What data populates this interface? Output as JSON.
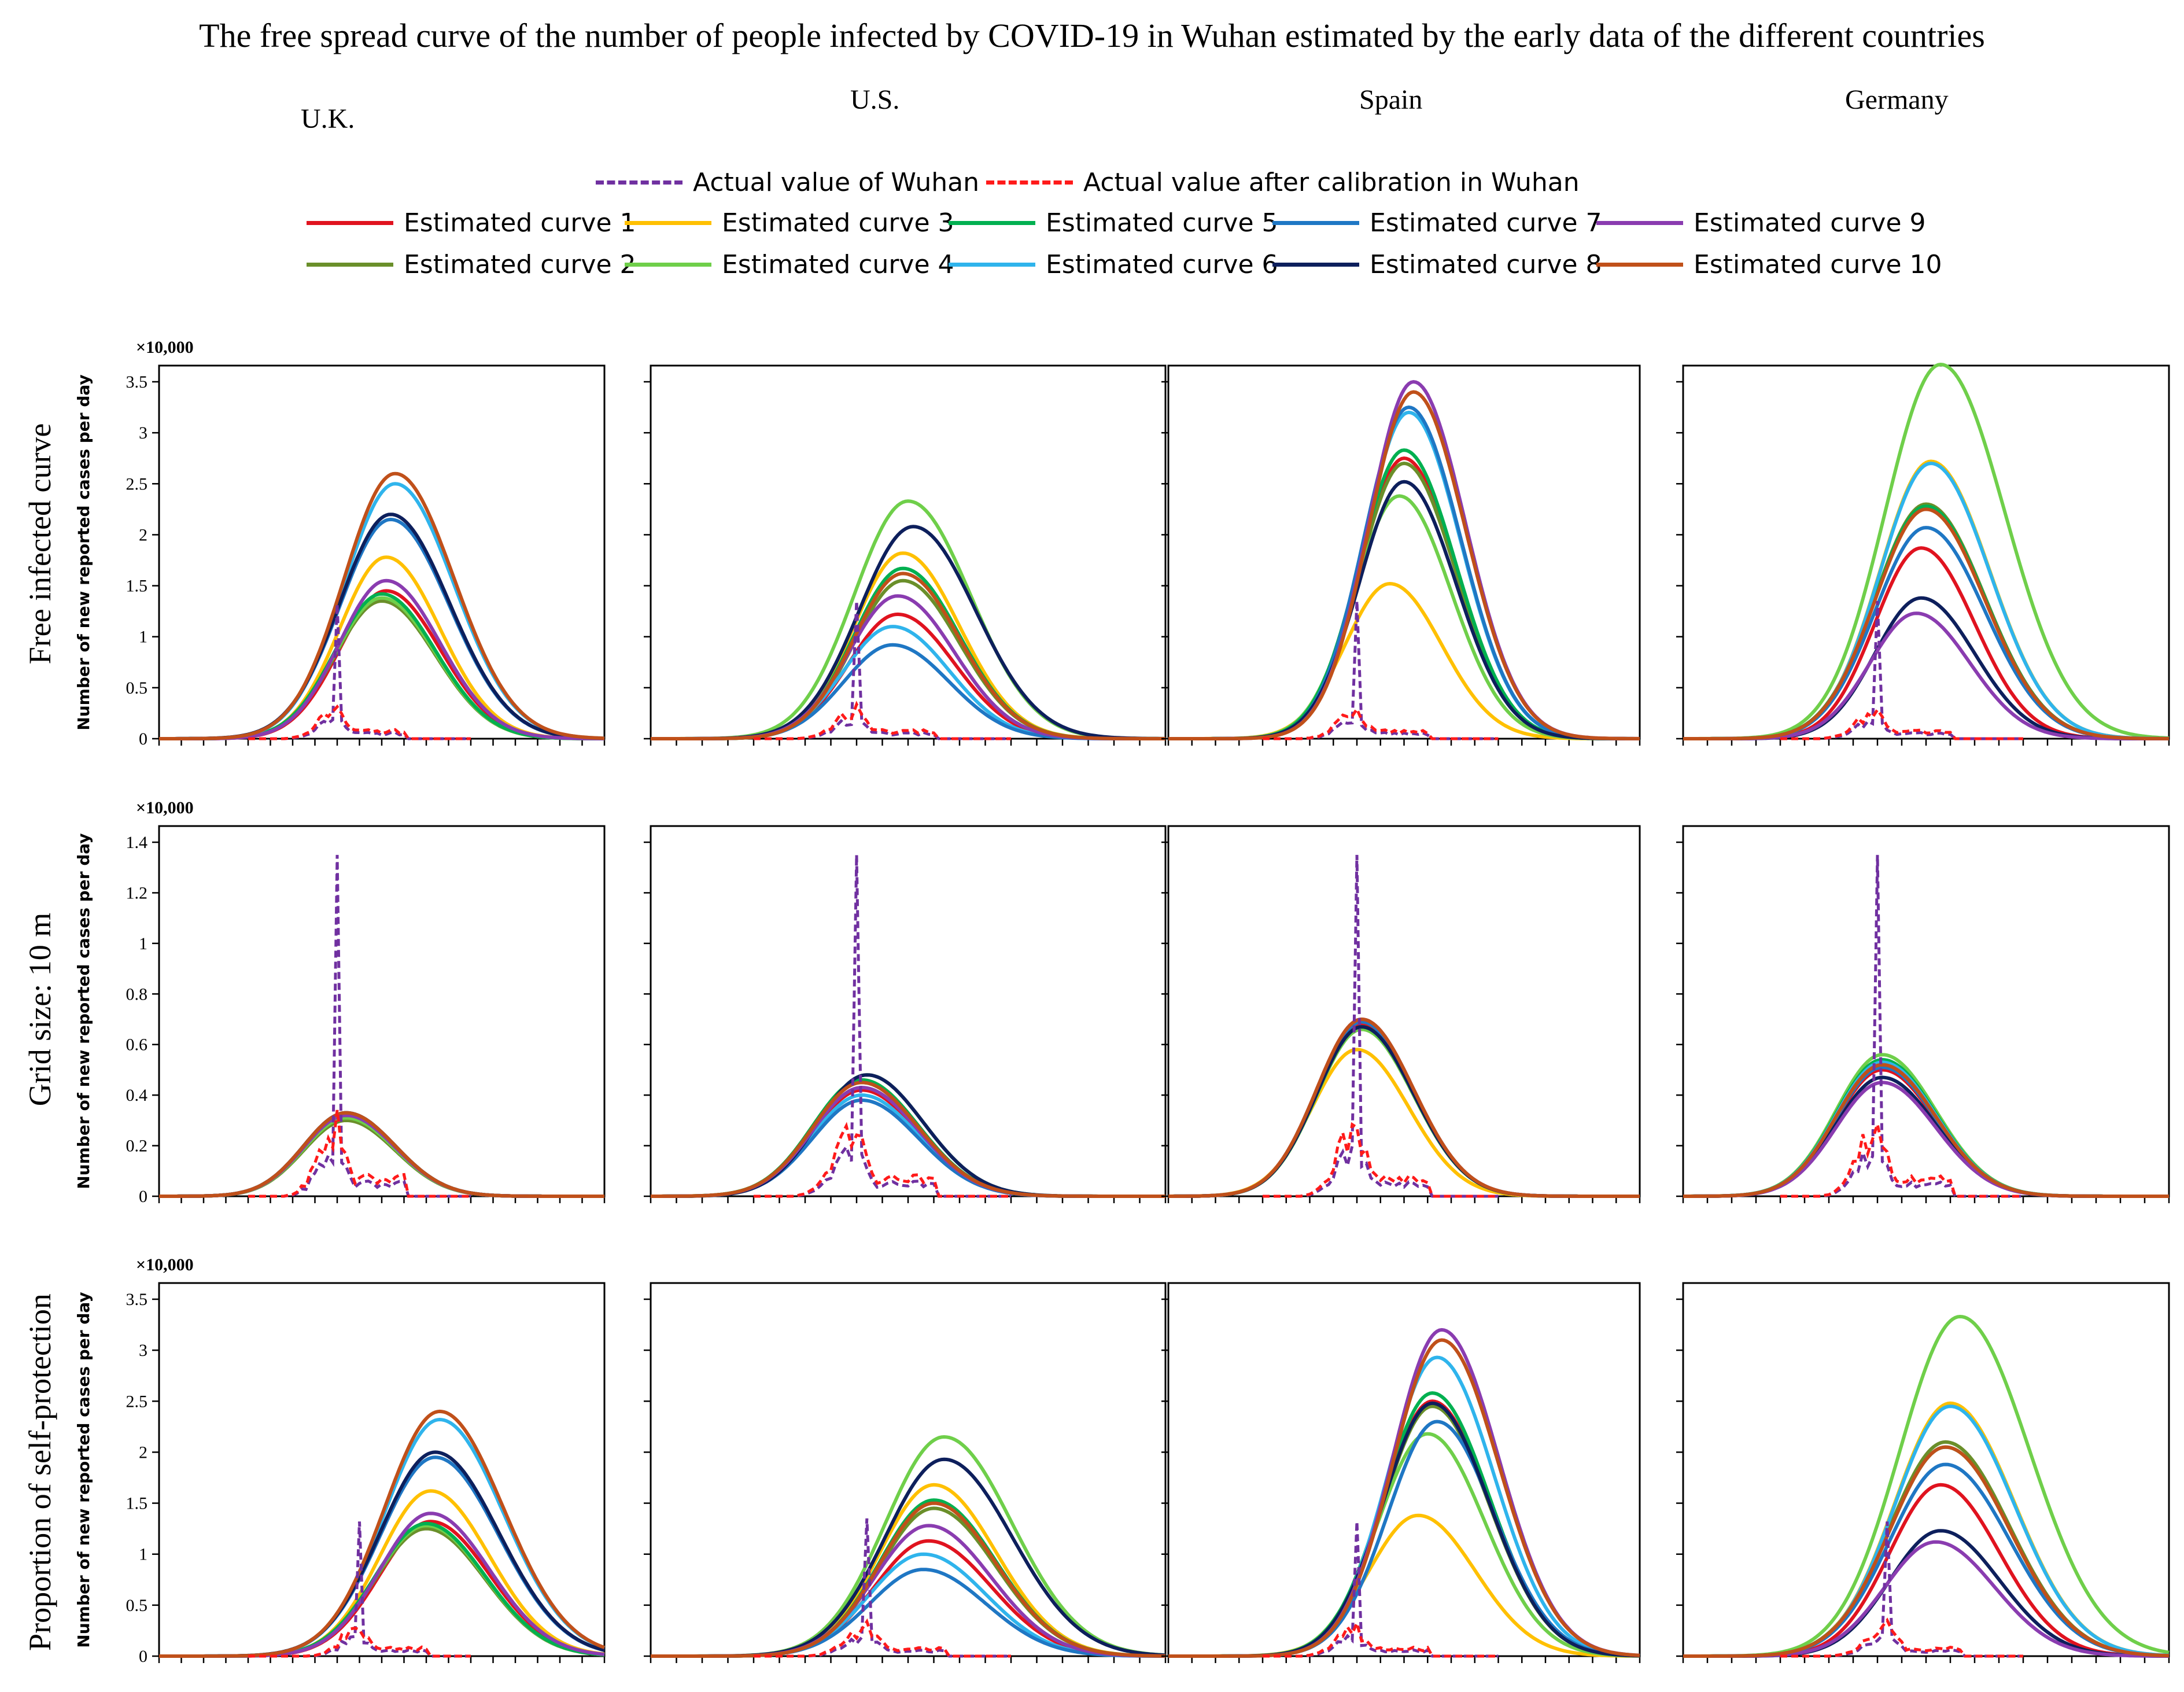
{
  "title": "The free spread curve of the number of people infected by COVID-19 in Wuhan estimated by the early data of the different countries",
  "countries": [
    "U.K.",
    "U.S.",
    "Spain",
    "Germany"
  ],
  "row_labels": [
    "Free infected curve",
    "Grid size: 10 m",
    "Proportion of self-protection"
  ],
  "y_axis_title": "Number of new reported cases per day",
  "scale_label": "×10,000",
  "legend": {
    "top_row": [
      {
        "name": "Actual value of Wuhan",
        "color": "#7030a0",
        "dashed": true
      },
      {
        "name": "Actual value after calibration in Wuhan",
        "color": "#ff1a1a",
        "dashed": true
      }
    ],
    "curves": [
      {
        "name": "Estimated curve 1",
        "color": "#e0131f"
      },
      {
        "name": "Estimated curve 2",
        "color": "#6a8f2a"
      },
      {
        "name": "Estimated curve 3",
        "color": "#ffc000"
      },
      {
        "name": "Estimated curve 4",
        "color": "#6fcf4a"
      },
      {
        "name": "Estimated curve 5",
        "color": "#00b050"
      },
      {
        "name": "Estimated curve 6",
        "color": "#2fb4ec"
      },
      {
        "name": "Estimated curve 7",
        "color": "#1f77c4"
      },
      {
        "name": "Estimated curve 8",
        "color": "#0d1f5c"
      },
      {
        "name": "Estimated curve 9",
        "color": "#8a3cb0"
      },
      {
        "name": "Estimated curve 10",
        "color": "#c0501a"
      }
    ]
  },
  "chart_data": [
    {
      "type": "line",
      "row": "Free infected curve",
      "country": "U.K.",
      "ylim": [
        0,
        3.5
      ],
      "yticks": [
        0,
        0.5,
        1,
        1.5,
        2,
        2.5,
        3,
        3.5
      ],
      "tick_labels_shown": true,
      "xlim": [
        0,
        100
      ],
      "actual_peak": 1.32,
      "actual_peak_day": 40,
      "series": [
        {
          "peak_day": 51,
          "peak": 1.45,
          "width": 11
        },
        {
          "peak_day": 50,
          "peak": 1.35,
          "width": 11
        },
        {
          "peak_day": 51,
          "peak": 1.78,
          "width": 11
        },
        {
          "peak_day": 50,
          "peak": 1.38,
          "width": 11
        },
        {
          "peak_day": 50,
          "peak": 1.42,
          "width": 11
        },
        {
          "peak_day": 53,
          "peak": 2.5,
          "width": 12
        },
        {
          "peak_day": 52,
          "peak": 2.15,
          "width": 12
        },
        {
          "peak_day": 52,
          "peak": 2.2,
          "width": 12
        },
        {
          "peak_day": 51,
          "peak": 1.55,
          "width": 11
        },
        {
          "peak_day": 53,
          "peak": 2.6,
          "width": 12
        }
      ]
    },
    {
      "type": "line",
      "row": "Free infected curve",
      "country": "U.S.",
      "ylim": [
        0,
        3.5
      ],
      "yticks": [
        0,
        0.5,
        1,
        1.5,
        2,
        2.5,
        3,
        3.5
      ],
      "tick_labels_shown": false,
      "xlim": [
        0,
        100
      ],
      "actual_peak": 1.35,
      "actual_peak_day": 40,
      "series": [
        {
          "peak_day": 48,
          "peak": 1.22,
          "width": 10
        },
        {
          "peak_day": 49,
          "peak": 1.55,
          "width": 10
        },
        {
          "peak_day": 49,
          "peak": 1.82,
          "width": 10
        },
        {
          "peak_day": 50,
          "peak": 2.33,
          "width": 11
        },
        {
          "peak_day": 49,
          "peak": 1.67,
          "width": 10
        },
        {
          "peak_day": 47,
          "peak": 1.1,
          "width": 10
        },
        {
          "peak_day": 47,
          "peak": 0.92,
          "width": 10
        },
        {
          "peak_day": 51,
          "peak": 2.08,
          "width": 11
        },
        {
          "peak_day": 48,
          "peak": 1.4,
          "width": 10
        },
        {
          "peak_day": 49,
          "peak": 1.62,
          "width": 10
        }
      ]
    },
    {
      "type": "line",
      "row": "Free infected curve",
      "country": "Spain",
      "ylim": [
        0,
        3.5
      ],
      "yticks": [
        0,
        0.5,
        1,
        1.5,
        2,
        2.5,
        3,
        3.5
      ],
      "tick_labels_shown": false,
      "xlim": [
        0,
        100
      ],
      "actual_peak": 1.35,
      "actual_peak_day": 40,
      "series": [
        {
          "peak_day": 50,
          "peak": 2.75,
          "width": 10
        },
        {
          "peak_day": 50,
          "peak": 2.7,
          "width": 10
        },
        {
          "peak_day": 47,
          "peak": 1.52,
          "width": 10
        },
        {
          "peak_day": 49,
          "peak": 2.38,
          "width": 10
        },
        {
          "peak_day": 50,
          "peak": 2.83,
          "width": 10
        },
        {
          "peak_day": 51,
          "peak": 3.2,
          "width": 10
        },
        {
          "peak_day": 51,
          "peak": 3.25,
          "width": 10
        },
        {
          "peak_day": 50,
          "peak": 2.52,
          "width": 10
        },
        {
          "peak_day": 52,
          "peak": 3.5,
          "width": 10
        },
        {
          "peak_day": 52,
          "peak": 3.4,
          "width": 10
        }
      ]
    },
    {
      "type": "line",
      "row": "Free infected curve",
      "country": "Germany",
      "ylim": [
        0,
        3.5
      ],
      "yticks": [
        0,
        0.5,
        1,
        1.5,
        2,
        2.5,
        3,
        3.5
      ],
      "tick_labels_shown": false,
      "xlim": [
        0,
        100
      ],
      "actual_peak": 1.35,
      "actual_peak_day": 40,
      "series": [
        {
          "peak_day": 49,
          "peak": 1.87,
          "width": 10
        },
        {
          "peak_day": 50,
          "peak": 2.3,
          "width": 11
        },
        {
          "peak_day": 51,
          "peak": 2.72,
          "width": 11
        },
        {
          "peak_day": 53,
          "peak": 3.67,
          "width": 12
        },
        {
          "peak_day": 50,
          "peak": 2.28,
          "width": 11
        },
        {
          "peak_day": 51,
          "peak": 2.7,
          "width": 11
        },
        {
          "peak_day": 50,
          "peak": 2.07,
          "width": 11
        },
        {
          "peak_day": 49,
          "peak": 1.38,
          "width": 10
        },
        {
          "peak_day": 48,
          "peak": 1.23,
          "width": 10
        },
        {
          "peak_day": 50,
          "peak": 2.25,
          "width": 11
        }
      ]
    },
    {
      "type": "line",
      "row": "Grid size: 10 m",
      "country": "U.K.",
      "ylim": [
        0,
        1.4
      ],
      "yticks": [
        0,
        0.2,
        0.4,
        0.6,
        0.8,
        1,
        1.2,
        1.4
      ],
      "tick_labels_shown": true,
      "xlim": [
        0,
        100
      ],
      "actual_peak": 1.35,
      "actual_peak_day": 40,
      "series": [
        {
          "peak_day": 42,
          "peak": 0.32,
          "width": 10
        },
        {
          "peak_day": 42,
          "peak": 0.3,
          "width": 10
        },
        {
          "peak_day": 42,
          "peak": 0.32,
          "width": 10
        },
        {
          "peak_day": 42,
          "peak": 0.31,
          "width": 10
        },
        {
          "peak_day": 42,
          "peak": 0.32,
          "width": 10
        },
        {
          "peak_day": 42,
          "peak": 0.33,
          "width": 10
        },
        {
          "peak_day": 42,
          "peak": 0.33,
          "width": 10
        },
        {
          "peak_day": 42,
          "peak": 0.33,
          "width": 10
        },
        {
          "peak_day": 42,
          "peak": 0.32,
          "width": 10
        },
        {
          "peak_day": 42,
          "peak": 0.33,
          "width": 10
        }
      ]
    },
    {
      "type": "line",
      "row": "Grid size: 10 m",
      "country": "U.S.",
      "ylim": [
        0,
        1.4
      ],
      "yticks": [
        0,
        0.2,
        0.4,
        0.6,
        0.8,
        1,
        1.2,
        1.4
      ],
      "tick_labels_shown": false,
      "xlim": [
        0,
        100
      ],
      "actual_peak": 1.35,
      "actual_peak_day": 40,
      "series": [
        {
          "peak_day": 41,
          "peak": 0.42,
          "width": 10
        },
        {
          "peak_day": 41,
          "peak": 0.45,
          "width": 10
        },
        {
          "peak_day": 41,
          "peak": 0.46,
          "width": 10
        },
        {
          "peak_day": 42,
          "peak": 0.48,
          "width": 10
        },
        {
          "peak_day": 41,
          "peak": 0.46,
          "width": 10
        },
        {
          "peak_day": 41,
          "peak": 0.4,
          "width": 10
        },
        {
          "peak_day": 41,
          "peak": 0.38,
          "width": 10
        },
        {
          "peak_day": 42,
          "peak": 0.48,
          "width": 10
        },
        {
          "peak_day": 41,
          "peak": 0.43,
          "width": 10
        },
        {
          "peak_day": 41,
          "peak": 0.45,
          "width": 10
        }
      ]
    },
    {
      "type": "line",
      "row": "Grid size: 10 m",
      "country": "Spain",
      "ylim": [
        0,
        1.4
      ],
      "yticks": [
        0,
        0.2,
        0.4,
        0.6,
        0.8,
        1,
        1.2,
        1.4
      ],
      "tick_labels_shown": false,
      "xlim": [
        0,
        100
      ],
      "actual_peak": 1.35,
      "actual_peak_day": 40,
      "series": [
        {
          "peak_day": 41,
          "peak": 0.68,
          "width": 10
        },
        {
          "peak_day": 41,
          "peak": 0.67,
          "width": 10
        },
        {
          "peak_day": 40,
          "peak": 0.58,
          "width": 10
        },
        {
          "peak_day": 41,
          "peak": 0.66,
          "width": 10
        },
        {
          "peak_day": 41,
          "peak": 0.67,
          "width": 10
        },
        {
          "peak_day": 41,
          "peak": 0.69,
          "width": 10
        },
        {
          "peak_day": 41,
          "peak": 0.69,
          "width": 10
        },
        {
          "peak_day": 41,
          "peak": 0.67,
          "width": 10
        },
        {
          "peak_day": 41,
          "peak": 0.7,
          "width": 10
        },
        {
          "peak_day": 41,
          "peak": 0.7,
          "width": 10
        }
      ]
    },
    {
      "type": "line",
      "row": "Grid size: 10 m",
      "country": "Germany",
      "ylim": [
        0,
        1.4
      ],
      "yticks": [
        0,
        0.2,
        0.4,
        0.6,
        0.8,
        1,
        1.2,
        1.4
      ],
      "tick_labels_shown": false,
      "xlim": [
        0,
        100
      ],
      "actual_peak": 1.35,
      "actual_peak_day": 40,
      "series": [
        {
          "peak_day": 41,
          "peak": 0.5,
          "width": 10
        },
        {
          "peak_day": 41,
          "peak": 0.52,
          "width": 10
        },
        {
          "peak_day": 41,
          "peak": 0.53,
          "width": 10
        },
        {
          "peak_day": 41,
          "peak": 0.56,
          "width": 10
        },
        {
          "peak_day": 41,
          "peak": 0.54,
          "width": 10
        },
        {
          "peak_day": 41,
          "peak": 0.53,
          "width": 10
        },
        {
          "peak_day": 41,
          "peak": 0.51,
          "width": 10
        },
        {
          "peak_day": 41,
          "peak": 0.47,
          "width": 10
        },
        {
          "peak_day": 41,
          "peak": 0.45,
          "width": 10
        },
        {
          "peak_day": 41,
          "peak": 0.52,
          "width": 10
        }
      ]
    },
    {
      "type": "line",
      "row": "Proportion of self-protection",
      "country": "U.K.",
      "ylim": [
        0,
        3.5
      ],
      "yticks": [
        0,
        0.5,
        1,
        1.5,
        2,
        2.5,
        3,
        3.5
      ],
      "tick_labels_shown": true,
      "xlim": [
        0,
        100
      ],
      "actual_peak": 1.32,
      "actual_peak_day": 45,
      "series": [
        {
          "peak_day": 61,
          "peak": 1.32,
          "width": 12
        },
        {
          "peak_day": 60,
          "peak": 1.25,
          "width": 12
        },
        {
          "peak_day": 61,
          "peak": 1.62,
          "width": 12
        },
        {
          "peak_day": 60,
          "peak": 1.28,
          "width": 12
        },
        {
          "peak_day": 60,
          "peak": 1.3,
          "width": 12
        },
        {
          "peak_day": 63,
          "peak": 2.32,
          "width": 13
        },
        {
          "peak_day": 62,
          "peak": 1.95,
          "width": 13
        },
        {
          "peak_day": 62,
          "peak": 2.0,
          "width": 13
        },
        {
          "peak_day": 61,
          "peak": 1.4,
          "width": 12
        },
        {
          "peak_day": 63,
          "peak": 2.4,
          "width": 13
        }
      ]
    },
    {
      "type": "line",
      "row": "Proportion of self-protection",
      "country": "U.S.",
      "ylim": [
        0,
        3.5
      ],
      "yticks": [
        0,
        0.5,
        1,
        1.5,
        2,
        2.5,
        3,
        3.5
      ],
      "tick_labels_shown": false,
      "xlim": [
        0,
        100
      ],
      "actual_peak": 1.35,
      "actual_peak_day": 42,
      "series": [
        {
          "peak_day": 54,
          "peak": 1.13,
          "width": 11
        },
        {
          "peak_day": 55,
          "peak": 1.45,
          "width": 11
        },
        {
          "peak_day": 55,
          "peak": 1.68,
          "width": 11
        },
        {
          "peak_day": 57,
          "peak": 2.15,
          "width": 12
        },
        {
          "peak_day": 55,
          "peak": 1.53,
          "width": 11
        },
        {
          "peak_day": 53,
          "peak": 1.0,
          "width": 11
        },
        {
          "peak_day": 53,
          "peak": 0.85,
          "width": 11
        },
        {
          "peak_day": 57,
          "peak": 1.93,
          "width": 12
        },
        {
          "peak_day": 54,
          "peak": 1.28,
          "width": 11
        },
        {
          "peak_day": 55,
          "peak": 1.5,
          "width": 11
        }
      ]
    },
    {
      "type": "line",
      "row": "Proportion of self-protection",
      "country": "Spain",
      "ylim": [
        0,
        3.5
      ],
      "yticks": [
        0,
        0.5,
        1,
        1.5,
        2,
        2.5,
        3,
        3.5
      ],
      "tick_labels_shown": false,
      "xlim": [
        0,
        100
      ],
      "actual_peak": 1.32,
      "actual_peak_day": 40,
      "series": [
        {
          "peak_day": 56,
          "peak": 2.5,
          "width": 11
        },
        {
          "peak_day": 56,
          "peak": 2.45,
          "width": 11
        },
        {
          "peak_day": 53,
          "peak": 1.38,
          "width": 11
        },
        {
          "peak_day": 55,
          "peak": 2.18,
          "width": 11
        },
        {
          "peak_day": 56,
          "peak": 2.58,
          "width": 11
        },
        {
          "peak_day": 57,
          "peak": 2.93,
          "width": 11
        },
        {
          "peak_day": 57,
          "peak": 2.3,
          "width": 11
        },
        {
          "peak_day": 56,
          "peak": 2.48,
          "width": 11
        },
        {
          "peak_day": 58,
          "peak": 3.2,
          "width": 11
        },
        {
          "peak_day": 58,
          "peak": 3.1,
          "width": 11
        }
      ]
    },
    {
      "type": "line",
      "row": "Proportion of self-protection",
      "country": "Germany",
      "ylim": [
        0,
        3.5
      ],
      "yticks": [
        0,
        0.5,
        1,
        1.5,
        2,
        2.5,
        3,
        3.5
      ],
      "tick_labels_shown": false,
      "xlim": [
        0,
        100
      ],
      "actual_peak": 1.32,
      "actual_peak_day": 42,
      "series": [
        {
          "peak_day": 53,
          "peak": 1.68,
          "width": 11
        },
        {
          "peak_day": 54,
          "peak": 2.1,
          "width": 12
        },
        {
          "peak_day": 55,
          "peak": 2.48,
          "width": 12
        },
        {
          "peak_day": 57,
          "peak": 3.33,
          "width": 13
        },
        {
          "peak_day": 54,
          "peak": 2.05,
          "width": 12
        },
        {
          "peak_day": 55,
          "peak": 2.45,
          "width": 12
        },
        {
          "peak_day": 54,
          "peak": 1.88,
          "width": 12
        },
        {
          "peak_day": 53,
          "peak": 1.23,
          "width": 11
        },
        {
          "peak_day": 52,
          "peak": 1.12,
          "width": 11
        },
        {
          "peak_day": 54,
          "peak": 2.05,
          "width": 12
        }
      ]
    }
  ]
}
